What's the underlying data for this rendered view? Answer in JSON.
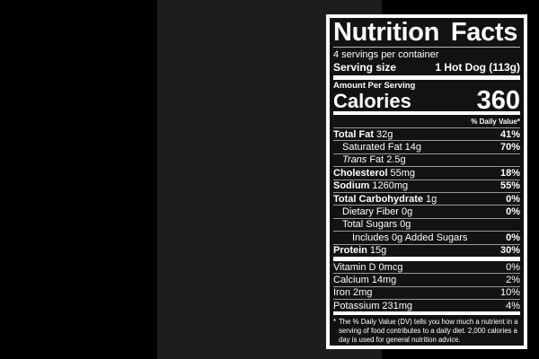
{
  "colors": {
    "page_background": "#000000",
    "panel_background": "#1d1d1d",
    "label_background": "#121212",
    "label_border": "#ffffff",
    "text": "#ffffff",
    "hairline": "#999999"
  },
  "label": {
    "title": "Nutrition Facts",
    "servings_per_container": "4 servings per container",
    "serving_size": {
      "label": "Serving size",
      "value": "1 Hot Dog (113g)"
    },
    "calories_section": {
      "amount_per_serving": "Amount Per Serving",
      "label": "Calories",
      "value": "360"
    },
    "daily_value_header": "% Daily Value*",
    "nutrients": [
      {
        "name": "Total Fat",
        "amount": "32g",
        "dv": "41%"
      },
      {
        "name": "Saturated Fat",
        "amount": "14g",
        "dv": "70%"
      },
      {
        "name": "Trans",
        "amount": "Fat 2.5g",
        "dv": ""
      },
      {
        "name": "Cholesterol",
        "amount": "55mg",
        "dv": "18%"
      },
      {
        "name": "Sodium",
        "amount": "1260mg",
        "dv": "55%"
      },
      {
        "name": "Total Carbohydrate",
        "amount": "1g",
        "dv": "0%"
      },
      {
        "name": "Dietary Fiber",
        "amount": "0g",
        "dv": "0%"
      },
      {
        "name": "Total Sugars",
        "amount": "0g",
        "dv": ""
      },
      {
        "name": "Includes 0g Added Sugars",
        "amount": "",
        "dv": "0%"
      },
      {
        "name": "Protein",
        "amount": "15g",
        "dv": "30%"
      }
    ],
    "micronutrients": [
      {
        "name": "Vitamin D 0mcg",
        "dv": "0%"
      },
      {
        "name": "Calcium 14mg",
        "dv": "2%"
      },
      {
        "name": "Iron 2mg",
        "dv": "10%"
      },
      {
        "name": "Potassium 231mg",
        "dv": "4%"
      }
    ],
    "footnote_marker": "*",
    "footnote": "The % Daily Value (DV) tells you how much a nutrient in a serving of food contributes to a daily diet. 2,000 calories a day is used for general nutrition advice."
  }
}
